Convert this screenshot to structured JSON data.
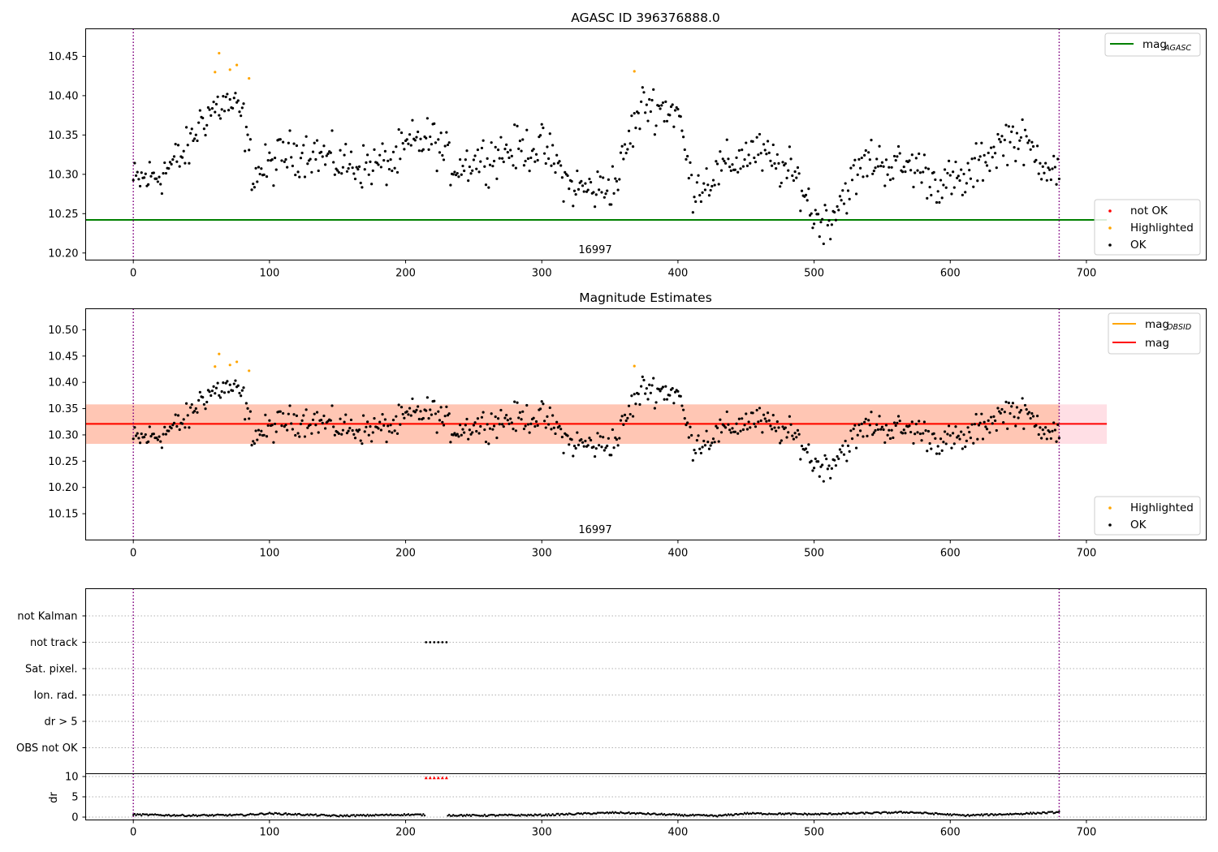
{
  "colors": {
    "ok": "#000000",
    "highlighted": "#ffa500",
    "not_ok": "#ff0000",
    "agasc_line": "#008000",
    "mag_line": "#ff0000",
    "mag_obsid_line": "#ffa500",
    "band_obsid": "#ffb08c",
    "band_mag": "#ffc0cb",
    "boundary": "#800080",
    "grid": "#b0b0b0"
  },
  "chart_data": [
    {
      "type": "scatter",
      "title": "AGASC ID 396376888.0",
      "x_ticks": [
        "0",
        "100",
        "200",
        "300",
        "400",
        "500",
        "600",
        "700"
      ],
      "y_ticks": [
        "10.20",
        "10.25",
        "10.30",
        "10.35",
        "10.40",
        "10.45"
      ],
      "xlim": [
        -35,
        788
      ],
      "ylim": [
        10.191,
        10.485
      ],
      "obsid_label": "16997",
      "obsid_label_x": 340,
      "obsid_boundaries": [
        0,
        680
      ],
      "mag_agasc": 10.242,
      "mag_agasc_xrange": [
        -35,
        715
      ],
      "legend_lines": [
        {
          "label": "mag",
          "subscript": "AGASC",
          "color_key": "agasc_line"
        }
      ],
      "legend_points": [
        {
          "label": "not OK",
          "color_key": "not_ok"
        },
        {
          "label": "Highlighted",
          "color_key": "highlighted"
        },
        {
          "label": "OK",
          "color_key": "ok"
        }
      ],
      "series": [
        {
          "name": "Highlighted",
          "points": [
            [
              60,
              10.43
            ],
            [
              63,
              10.454
            ],
            [
              71,
              10.433
            ],
            [
              76,
              10.439
            ],
            [
              85,
              10.422
            ],
            [
              368,
              10.431
            ]
          ]
        },
        {
          "name": "not OK",
          "points": []
        }
      ]
    },
    {
      "type": "scatter",
      "title": "Magnitude Estimates",
      "x_ticks": [
        "0",
        "100",
        "200",
        "300",
        "400",
        "500",
        "600",
        "700"
      ],
      "y_ticks": [
        "10.15",
        "10.20",
        "10.25",
        "10.30",
        "10.35",
        "10.40",
        "10.45",
        "10.50"
      ],
      "xlim": [
        -35,
        788
      ],
      "ylim": [
        10.1,
        10.54
      ],
      "obsid_label": "16997",
      "obsid_label_x": 340,
      "obsid_boundaries": [
        0,
        680
      ],
      "mag": 10.321,
      "mag_band": [
        10.283,
        10.358
      ],
      "mag_obsid": 10.321,
      "mag_obsid_band": [
        10.283,
        10.358
      ],
      "band_xrange": [
        -35,
        715
      ],
      "legend_lines": [
        {
          "label": "mag",
          "subscript": "OBSID",
          "color_key": "mag_obsid_line"
        },
        {
          "label": "mag",
          "subscript": "",
          "color_key": "mag_line"
        }
      ],
      "legend_points": [
        {
          "label": "Highlighted",
          "color_key": "highlighted"
        },
        {
          "label": "OK",
          "color_key": "ok"
        }
      ],
      "series": [
        {
          "name": "Highlighted",
          "points": [
            [
              60,
              10.43
            ],
            [
              63,
              10.454
            ],
            [
              71,
              10.433
            ],
            [
              76,
              10.439
            ],
            [
              85,
              10.422
            ],
            [
              368,
              10.431
            ]
          ]
        }
      ]
    },
    {
      "type": "scatter",
      "title": "",
      "flag_labels": [
        "not Kalman",
        "not track",
        "Sat. pixel.",
        "Ion. rad.",
        "dr > 5",
        "OBS not OK"
      ],
      "flag_points": [
        {
          "flag": "not track",
          "x": [
            215,
            218,
            221,
            224,
            227,
            230
          ]
        }
      ],
      "xlim": [
        -35,
        788
      ],
      "obsid_boundaries": [
        0,
        680
      ]
    },
    {
      "type": "scatter",
      "title": "",
      "ylabel": "dr",
      "x_ticks": [
        "0",
        "100",
        "200",
        "300",
        "400",
        "500",
        "600",
        "700"
      ],
      "y_ticks": [
        "0",
        "5",
        "10"
      ],
      "xlim": [
        -35,
        788
      ],
      "ylim": [
        -0.7,
        10.7
      ],
      "obsid_boundaries": [
        0,
        680
      ],
      "clipped_points": {
        "x": [
          215,
          218,
          221,
          224,
          227,
          230
        ],
        "y": 9.7
      },
      "dr_profile": [
        [
          0,
          0.6
        ],
        [
          40,
          0.4
        ],
        [
          80,
          0.5
        ],
        [
          100,
          0.9
        ],
        [
          150,
          0.3
        ],
        [
          200,
          0.6
        ],
        [
          250,
          0.4
        ],
        [
          300,
          0.5
        ],
        [
          355,
          1.1
        ],
        [
          400,
          0.5
        ],
        [
          430,
          0.3
        ],
        [
          450,
          0.9
        ],
        [
          500,
          0.7
        ],
        [
          570,
          1.2
        ],
        [
          610,
          0.4
        ],
        [
          650,
          0.8
        ],
        [
          680,
          1.2
        ]
      ]
    }
  ]
}
